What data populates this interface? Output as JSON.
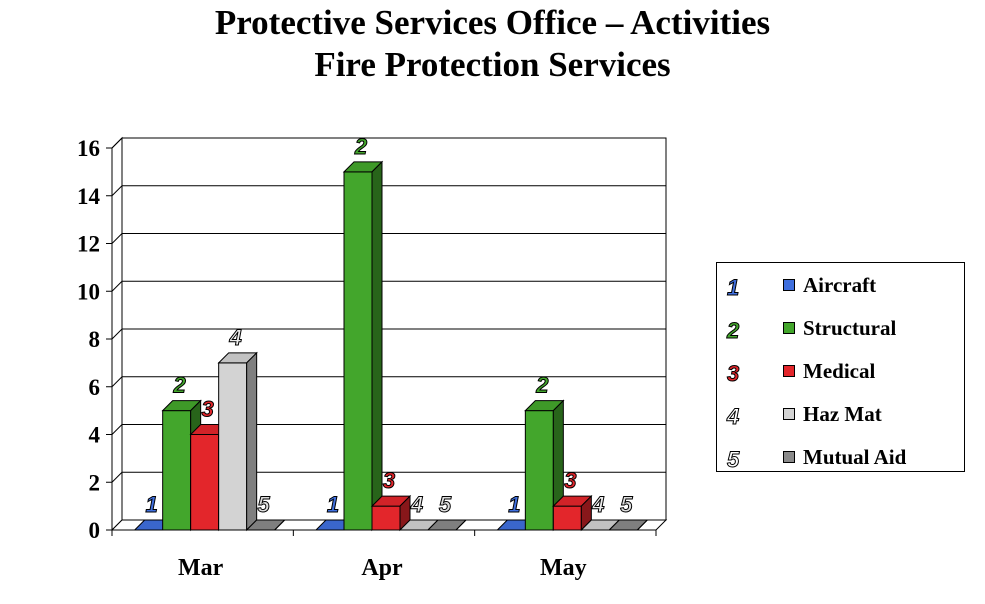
{
  "title_line1": "Protective Services Office – Activities",
  "title_line2": "Fire Protection Services",
  "chart_data": {
    "type": "bar",
    "categories": [
      "Mar",
      "Apr",
      "May"
    ],
    "series": [
      {
        "name": "Aircraft",
        "label": "1",
        "color": "#3f6fde",
        "values": [
          0,
          0,
          0
        ]
      },
      {
        "name": "Structural",
        "label": "2",
        "color": "#43a62c",
        "values": [
          5,
          15,
          5
        ]
      },
      {
        "name": "Medical",
        "label": "3",
        "color": "#e3262b",
        "values": [
          4,
          1,
          1
        ]
      },
      {
        "name": "Haz Mat",
        "label": "4",
        "color": "#d3d3d3",
        "values": [
          7,
          0,
          0
        ]
      },
      {
        "name": "Mutual Aid",
        "label": "5",
        "color": "#8a8a8a",
        "values": [
          0,
          0,
          0
        ]
      }
    ],
    "ylim": [
      0,
      16
    ],
    "yticks": [
      "0",
      "2",
      "4",
      "6",
      "8",
      "10",
      "12",
      "14",
      "16"
    ],
    "grid": true,
    "legend_position": "right"
  }
}
